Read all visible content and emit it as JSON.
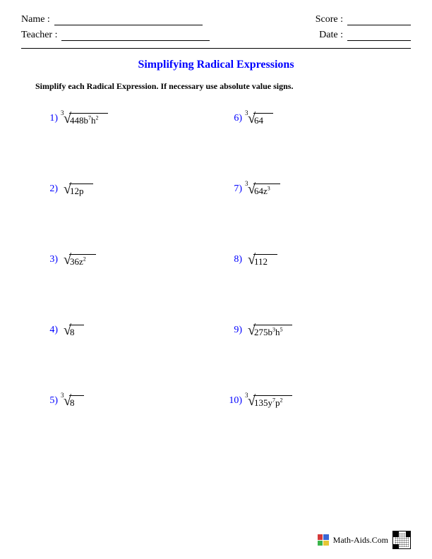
{
  "header": {
    "name_label": "Name :",
    "teacher_label": "Teacher :",
    "score_label": "Score :",
    "date_label": "Date :"
  },
  "title": "Simplifying Radical Expressions",
  "instructions": "Simplify each Radical Expression. If necessary use absolute value signs.",
  "problems": [
    {
      "num": "1)",
      "index": "3",
      "radicand_html": "448b<sup>7</sup>h<sup>2</sup>"
    },
    {
      "num": "2)",
      "index": "",
      "radicand_html": "12p"
    },
    {
      "num": "3)",
      "index": "",
      "radicand_html": "36z<sup>2</sup>"
    },
    {
      "num": "4)",
      "index": "",
      "radicand_html": "8"
    },
    {
      "num": "5)",
      "index": "3",
      "radicand_html": "8"
    },
    {
      "num": "6)",
      "index": "3",
      "radicand_html": "64"
    },
    {
      "num": "7)",
      "index": "3",
      "radicand_html": "64z<sup>3</sup>"
    },
    {
      "num": "8)",
      "index": "",
      "radicand_html": "112"
    },
    {
      "num": "9)",
      "index": "",
      "radicand_html": "275b<sup>3</sup>h<sup>5</sup>"
    },
    {
      "num": "10)",
      "index": "3",
      "radicand_html": "135y<sup>7</sup>p<sup>2</sup>"
    }
  ],
  "footer": {
    "site": "Math-Aids.Com",
    "logo_colors": [
      "#d43a3a",
      "#3a67d4",
      "#3ab54a",
      "#e6c735"
    ]
  },
  "colors": {
    "accent": "#0000ff",
    "text": "#000000",
    "background": "#ffffff"
  }
}
